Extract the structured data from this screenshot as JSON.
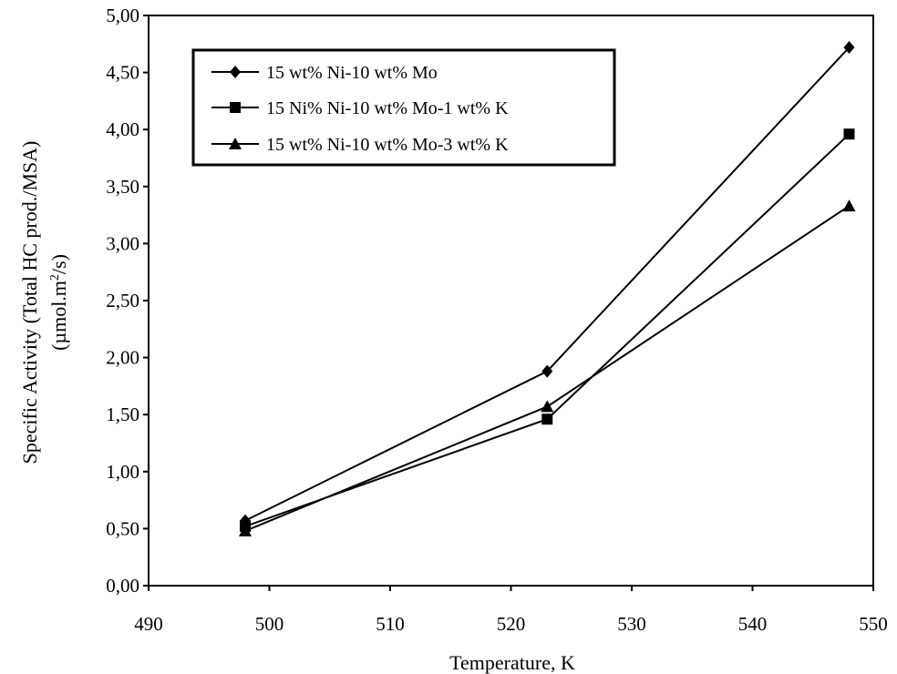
{
  "chart_data": {
    "type": "line",
    "xlabel": "Temperature, K",
    "ylabel_line1": "Specific Activity (Total HC prod./MSA)",
    "ylabel_line2_pre": "(µmol.m",
    "ylabel_line2_sup": "2",
    "ylabel_line2_post": "/s)",
    "xlim": [
      490,
      550
    ],
    "ylim": [
      0,
      5
    ],
    "x_ticks": [
      490,
      500,
      510,
      520,
      530,
      540,
      550
    ],
    "y_ticks": [
      0,
      0.5,
      1,
      1.5,
      2,
      2.5,
      3,
      3.5,
      4,
      4.5,
      5
    ],
    "x_tick_labels": [
      "490",
      "500",
      "510",
      "520",
      "530",
      "540",
      "550"
    ],
    "y_tick_labels": [
      "0,00",
      "0,50",
      "1,00",
      "1,50",
      "2,00",
      "2,50",
      "3,00",
      "3,50",
      "4,00",
      "4,50",
      "5,00"
    ],
    "grid": false,
    "legend_position": "top-left",
    "series": [
      {
        "name": "15 wt% Ni-10 wt% Mo",
        "marker": "diamond",
        "x": [
          498,
          523,
          548
        ],
        "y": [
          0.57,
          1.88,
          4.72
        ]
      },
      {
        "name": "15 Ni% Ni-10 wt% Mo-1 wt% K",
        "marker": "square",
        "x": [
          498,
          523,
          548
        ],
        "y": [
          0.52,
          1.46,
          3.96
        ]
      },
      {
        "name": "15 wt% Ni-10 wt% Mo-3 wt% K",
        "marker": "triangle",
        "x": [
          498,
          523,
          548
        ],
        "y": [
          0.48,
          1.57,
          3.33
        ]
      }
    ],
    "line_color": "#000000"
  }
}
